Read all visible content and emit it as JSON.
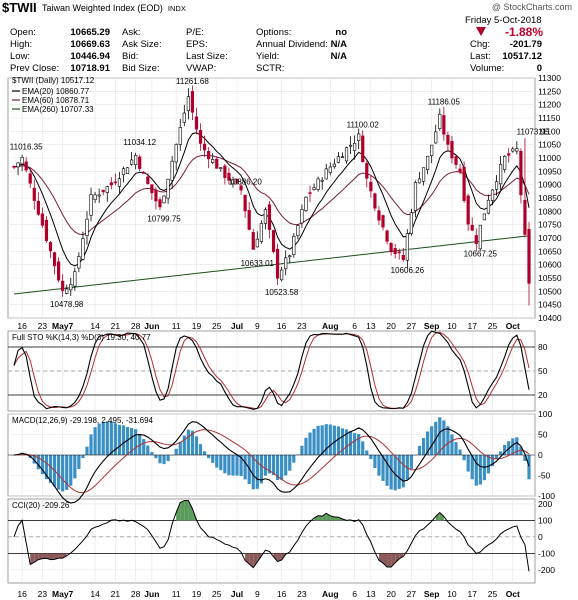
{
  "header": {
    "symbol": "$TWII",
    "description": "Taiwan Weighted Index (EOD)",
    "exchange": "INDX",
    "watermark": "@ StockCharts.com",
    "date": "Friday  5-Oct-2018",
    "change_pct": "-1.88%",
    "chg_label": "Chg:",
    "chg_value": "-201.79",
    "last_label": "Last:",
    "last_value": "10517.12",
    "volume_label": "Volume:",
    "volume_value": "0",
    "down_color": "#c0002a",
    "fields": [
      {
        "label": "Open:",
        "value": "10665.29"
      },
      {
        "label": "High:",
        "value": "10669.63"
      },
      {
        "label": "Low:",
        "value": "10446.94"
      },
      {
        "label": "Prev Close:",
        "value": "10718.91"
      },
      {
        "label": "Ask:",
        "value": ""
      },
      {
        "label": "Ask Size:",
        "value": ""
      },
      {
        "label": "Bid:",
        "value": ""
      },
      {
        "label": "Bid Size:",
        "value": ""
      },
      {
        "label": "P/E:",
        "value": ""
      },
      {
        "label": "EPS:",
        "value": ""
      },
      {
        "label": "Last Size:",
        "value": ""
      },
      {
        "label": "VWAP:",
        "value": ""
      },
      {
        "label": "Options:",
        "value": "no"
      },
      {
        "label": "Annual Dividend:",
        "value": "N/A"
      },
      {
        "label": "Yield:",
        "value": "N/A"
      },
      {
        "label": "SCTR:",
        "value": ""
      }
    ]
  },
  "chart_data": [
    {
      "type": "candlestick",
      "title": "$TWII (Daily) 10517.12",
      "ylim": [
        10400,
        11300
      ],
      "yticks": [
        10400,
        10450,
        10500,
        10550,
        10600,
        10650,
        10700,
        10750,
        10800,
        10850,
        10900,
        10950,
        11000,
        11050,
        11100,
        11150,
        11200,
        11250,
        11300
      ],
      "legend": [
        {
          "name": "EMA(20) 10860.77",
          "color": "#000000"
        },
        {
          "name": "EMA(60) 10878.71",
          "color": "#7a1f3a"
        },
        {
          "name": "EMA(260) 10707.33",
          "color": "#1f4f1f"
        }
      ],
      "annotations": [
        {
          "text": "11016.35",
          "bar": 3,
          "value": 11016.35,
          "pos": "above"
        },
        {
          "text": "10478.98",
          "bar": 13,
          "value": 10478.98,
          "pos": "below"
        },
        {
          "text": "11034.12",
          "bar": 31,
          "value": 11034.12,
          "pos": "above"
        },
        {
          "text": "10799.75",
          "bar": 37,
          "value": 10799.75,
          "pos": "below"
        },
        {
          "text": "11261.68",
          "bar": 44,
          "value": 11261.68,
          "pos": "above"
        },
        {
          "text": "10886.20",
          "bar": 57,
          "value": 10886.2,
          "pos": "above"
        },
        {
          "text": "10633.01",
          "bar": 60,
          "value": 10633.01,
          "pos": "below"
        },
        {
          "text": "10523.58",
          "bar": 66,
          "value": 10523.58,
          "pos": "below"
        },
        {
          "text": "11100.02",
          "bar": 86,
          "value": 11100.02,
          "pos": "above"
        },
        {
          "text": "10606.26",
          "bar": 97,
          "value": 10606.26,
          "pos": "below"
        },
        {
          "text": "11186.05",
          "bar": 106,
          "value": 11186.05,
          "pos": "above"
        },
        {
          "text": "10667.25",
          "bar": 115,
          "value": 10667.25,
          "pos": "below"
        },
        {
          "text": "11073.95",
          "bar": 128,
          "value": 11073.95,
          "pos": "above"
        }
      ]
    },
    {
      "type": "line",
      "title": "Full STO %K(14,3) %D(3) 19.30, 40.77",
      "ylim": [
        0,
        100
      ],
      "yticks": [
        20,
        50,
        80
      ]
    },
    {
      "type": "bar",
      "title": "MACD(12,26,9) -29.198, 2.495, -31.694",
      "ylim": [
        -100,
        100
      ],
      "yticks": [
        -100,
        -50,
        0,
        50,
        100
      ]
    },
    {
      "type": "area",
      "title": "CCI(20) -209.26",
      "ylim": [
        -280,
        230
      ],
      "yticks": [
        -200,
        -100,
        0,
        100,
        200
      ]
    }
  ],
  "x_axis": {
    "ticks": [
      {
        "bar": 2,
        "label": "16",
        "bold": false
      },
      {
        "bar": 7,
        "label": "23",
        "bold": false
      },
      {
        "bar": 12,
        "label": "May7",
        "bold": true
      },
      {
        "bar": 20,
        "label": "14",
        "bold": false
      },
      {
        "bar": 25,
        "label": "21",
        "bold": false
      },
      {
        "bar": 30,
        "label": "28",
        "bold": false
      },
      {
        "bar": 34,
        "label": "Jun",
        "bold": true
      },
      {
        "bar": 40,
        "label": "11",
        "bold": false
      },
      {
        "bar": 45,
        "label": "19",
        "bold": false
      },
      {
        "bar": 50,
        "label": "25",
        "bold": false
      },
      {
        "bar": 55,
        "label": "Jul",
        "bold": true
      },
      {
        "bar": 60,
        "label": "9",
        "bold": false
      },
      {
        "bar": 66,
        "label": "16",
        "bold": false
      },
      {
        "bar": 71,
        "label": "23",
        "bold": false
      },
      {
        "bar": 78,
        "label": "Aug",
        "bold": true
      },
      {
        "bar": 84,
        "label": "6",
        "bold": false
      },
      {
        "bar": 88,
        "label": "13",
        "bold": false
      },
      {
        "bar": 93,
        "label": "20",
        "bold": false
      },
      {
        "bar": 98,
        "label": "27",
        "bold": false
      },
      {
        "bar": 103,
        "label": "Sep",
        "bold": true
      },
      {
        "bar": 108,
        "label": "10",
        "bold": false
      },
      {
        "bar": 113,
        "label": "17",
        "bold": false
      },
      {
        "bar": 118,
        "label": "25",
        "bold": false
      },
      {
        "bar": 123,
        "label": "Oct",
        "bold": true
      }
    ]
  },
  "colors": {
    "up": "#ffffff",
    "down": "#b0002a",
    "macd_hist": "#3a8fc4",
    "cci_pos_fill": "#5a9a5a",
    "cci_neg_fill": "#8a5a5a"
  }
}
